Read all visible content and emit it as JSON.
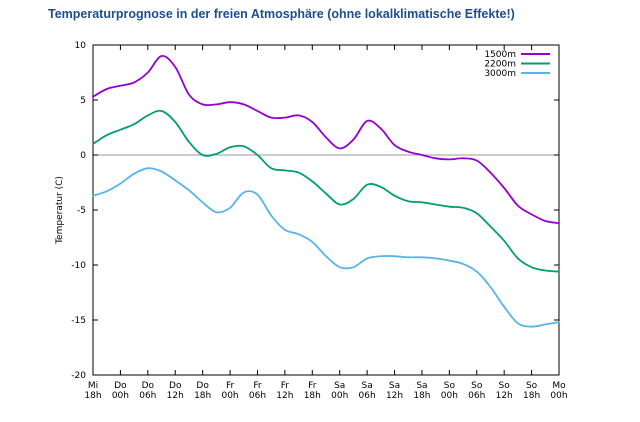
{
  "title": "Temperaturprognose in der freien Atmosphäre (ohne lokalklimatische Effekte!)",
  "chart_data": {
    "type": "line",
    "title": "Temperaturprognose in der freien Atmosphäre (ohne lokalklimatische Effekte!)",
    "xlabel": "",
    "ylabel": "Temperatur (C)",
    "ylim": [
      -20,
      10
    ],
    "yticks": [
      10,
      5,
      0,
      -5,
      -10,
      -15,
      -20
    ],
    "zero_line": true,
    "grid": false,
    "legend_position": "top-right",
    "x_ticks": [
      [
        "Mi",
        "18h"
      ],
      [
        "Do",
        "00h"
      ],
      [
        "Do",
        "06h"
      ],
      [
        "Do",
        "12h"
      ],
      [
        "Do",
        "18h"
      ],
      [
        "Fr",
        "00h"
      ],
      [
        "Fr",
        "06h"
      ],
      [
        "Fr",
        "12h"
      ],
      [
        "Fr",
        "18h"
      ],
      [
        "Sa",
        "00h"
      ],
      [
        "Sa",
        "06h"
      ],
      [
        "Sa",
        "12h"
      ],
      [
        "Sa",
        "18h"
      ],
      [
        "So",
        "00h"
      ],
      [
        "So",
        "06h"
      ],
      [
        "So",
        "12h"
      ],
      [
        "So",
        "18h"
      ],
      [
        "Mo",
        "00h"
      ]
    ],
    "x": [
      0,
      0.5,
      1,
      1.5,
      2,
      2.5,
      3,
      3.5,
      4,
      4.5,
      5,
      5.5,
      6,
      6.5,
      7,
      7.5,
      8,
      8.5,
      9,
      9.5,
      10,
      10.5,
      11,
      11.5,
      12,
      12.5,
      13,
      13.5,
      14,
      14.5,
      15,
      15.5,
      16,
      16.5,
      17
    ],
    "series": [
      {
        "name": "1500m",
        "color": "#9400d3",
        "values": [
          5.3,
          6.0,
          6.3,
          6.6,
          7.5,
          9.0,
          8.0,
          5.5,
          4.6,
          4.6,
          4.8,
          4.6,
          4.0,
          3.4,
          3.4,
          3.6,
          3.0,
          1.6,
          0.6,
          1.4,
          3.1,
          2.4,
          0.9,
          0.3,
          0.0,
          -0.3,
          -0.4,
          -0.3,
          -0.5,
          -1.6,
          -3.0,
          -4.6,
          -5.4,
          -6.0,
          -6.2
        ]
      },
      {
        "name": "2200m",
        "color": "#009e73",
        "values": [
          1.0,
          1.8,
          2.3,
          2.8,
          3.6,
          4.0,
          3.0,
          1.2,
          0.0,
          0.1,
          0.7,
          0.8,
          0.0,
          -1.2,
          -1.4,
          -1.6,
          -2.4,
          -3.5,
          -4.5,
          -4.0,
          -2.7,
          -2.9,
          -3.7,
          -4.2,
          -4.3,
          -4.5,
          -4.7,
          -4.8,
          -5.3,
          -6.5,
          -7.8,
          -9.4,
          -10.2,
          -10.5,
          -10.6
        ]
      },
      {
        "name": "3000m",
        "color": "#56b4e9",
        "values": [
          -3.7,
          -3.3,
          -2.6,
          -1.7,
          -1.2,
          -1.5,
          -2.3,
          -3.2,
          -4.3,
          -5.2,
          -4.8,
          -3.4,
          -3.6,
          -5.5,
          -6.8,
          -7.2,
          -7.9,
          -9.2,
          -10.2,
          -10.2,
          -9.4,
          -9.2,
          -9.2,
          -9.3,
          -9.3,
          -9.4,
          -9.6,
          -9.9,
          -10.6,
          -12.0,
          -13.8,
          -15.3,
          -15.6,
          -15.4,
          -15.2
        ]
      }
    ]
  }
}
